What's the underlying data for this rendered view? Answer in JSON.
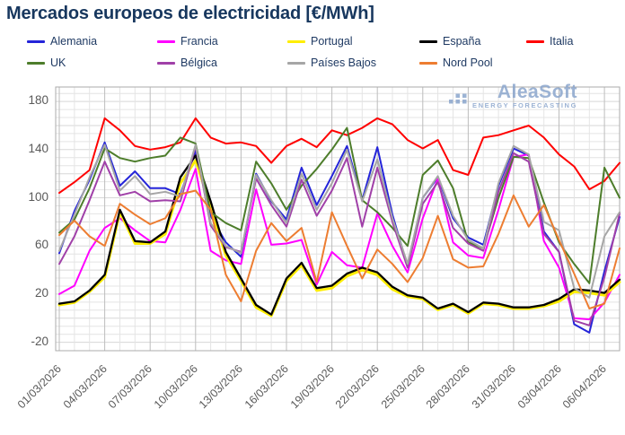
{
  "title": "Mercados europeos de electricidad [€/MWh]",
  "logo": {
    "name": "AleaSoft",
    "subtitle": "ENERGY FORECASTING"
  },
  "axis_text_color": "#595959",
  "title_color": "#17375e",
  "chart_data": {
    "type": "line",
    "title": "Mercados europeos de electricidad [€/MWh]",
    "ylabel": "",
    "xlabel": "",
    "ylim": [
      -20,
      180
    ],
    "y_ticks": [
      180,
      140,
      100,
      60,
      20,
      -20
    ],
    "grid": "on",
    "legend_position": "top",
    "x_tick_labels": [
      "01/03/2026",
      "04/03/2026",
      "07/03/2026",
      "10/03/2026",
      "13/03/2026",
      "16/03/2026",
      "19/03/2026",
      "22/03/2026",
      "25/03/2026",
      "28/03/2026",
      "31/03/2026",
      "03/04/2026",
      "06/04/2026"
    ],
    "categories": [
      "01/03/2026",
      "02/03/2026",
      "03/03/2026",
      "04/03/2026",
      "05/03/2026",
      "06/03/2026",
      "07/03/2026",
      "08/03/2026",
      "09/03/2026",
      "10/03/2026",
      "11/03/2026",
      "12/03/2026",
      "13/03/2026",
      "14/03/2026",
      "15/03/2026",
      "16/03/2026",
      "17/03/2026",
      "18/03/2026",
      "19/03/2026",
      "20/03/2026",
      "21/03/2026",
      "22/03/2026",
      "23/03/2026",
      "24/03/2026",
      "25/03/2026",
      "26/03/2026",
      "27/03/2026",
      "28/03/2026",
      "29/03/2026",
      "30/03/2026",
      "31/03/2026",
      "01/04/2026",
      "02/04/2026",
      "03/04/2026",
      "04/04/2026",
      "05/04/2026",
      "06/04/2026",
      "07/04/2026"
    ],
    "series": [
      {
        "name": "Alemania",
        "color": "#2424d9",
        "values": [
          54,
          89,
          115,
          146,
          110,
          122,
          108,
          108,
          103,
          139,
          85,
          63,
          51,
          120,
          97,
          82,
          125,
          94,
          118,
          143,
          98,
          142,
          86,
          43,
          100,
          117,
          83,
          67,
          61,
          110,
          141,
          135,
          72,
          55,
          -5,
          -12,
          39,
          84
        ]
      },
      {
        "name": "Francia",
        "color": "#ff00ff",
        "values": [
          20,
          27,
          56,
          75,
          83,
          73,
          64,
          63,
          90,
          124,
          56,
          48,
          45,
          107,
          61,
          62,
          65,
          28,
          55,
          44,
          42,
          87,
          60,
          38,
          83,
          116,
          63,
          52,
          50,
          90,
          134,
          136,
          64,
          42,
          0,
          -1,
          13,
          36
        ]
      },
      {
        "name": "Portugal",
        "color": "#ffee00",
        "values": [
          11,
          13,
          22,
          34,
          88,
          62,
          62,
          70,
          112,
          131,
          93,
          52,
          31,
          9,
          2,
          31,
          44,
          23,
          25,
          35,
          40,
          36,
          24,
          18,
          16,
          7,
          11,
          4,
          12,
          11,
          8,
          8,
          10,
          14,
          22,
          21,
          19,
          30
        ]
      },
      {
        "name": "España",
        "color": "#000000",
        "values": [
          12,
          14,
          23,
          36,
          90,
          64,
          63,
          72,
          117,
          135,
          97,
          55,
          33,
          11,
          3,
          33,
          46,
          25,
          27,
          37,
          42,
          38,
          26,
          19,
          17,
          8,
          12,
          5,
          13,
          12,
          9,
          9,
          11,
          16,
          24,
          23,
          21,
          32
        ]
      },
      {
        "name": "Italia",
        "color": "#ff0000",
        "values": [
          104,
          113,
          123,
          166,
          156,
          143,
          140,
          142,
          146,
          166,
          150,
          145,
          146,
          143,
          129,
          143,
          149,
          142,
          156,
          152,
          158,
          166,
          161,
          148,
          141,
          148,
          123,
          119,
          150,
          152,
          156,
          160,
          150,
          136,
          126,
          107,
          114,
          129
        ]
      },
      {
        "name": "UK",
        "color": "#4d7d2b",
        "values": [
          71,
          82,
          108,
          141,
          133,
          130,
          133,
          135,
          150,
          145,
          88,
          79,
          73,
          130,
          112,
          90,
          110,
          124,
          140,
          158,
          98,
          88,
          75,
          60,
          119,
          131,
          108,
          63,
          58,
          100,
          134,
          133,
          96,
          63,
          45,
          29,
          125,
          100
        ]
      },
      {
        "name": "Bélgica",
        "color": "#a040a8",
        "values": [
          45,
          68,
          98,
          130,
          102,
          105,
          97,
          98,
          97,
          143,
          77,
          59,
          55,
          116,
          94,
          76,
          115,
          85,
          106,
          133,
          76,
          125,
          80,
          42,
          95,
          113,
          75,
          62,
          56,
          105,
          137,
          130,
          70,
          55,
          -2,
          -6,
          34,
          87
        ]
      },
      {
        "name": "Países Bajos",
        "color": "#a6a6a6",
        "values": [
          56,
          86,
          117,
          144,
          106,
          118,
          103,
          105,
          101,
          144,
          79,
          60,
          54,
          119,
          98,
          79,
          120,
          90,
          112,
          140,
          97,
          132,
          83,
          45,
          100,
          118,
          85,
          65,
          58,
          112,
          143,
          136,
          80,
          73,
          25,
          17,
          68,
          88
        ]
      },
      {
        "name": "Nord Pool",
        "color": "#ed7d31",
        "values": [
          69,
          81,
          68,
          60,
          95,
          86,
          78,
          83,
          103,
          106,
          90,
          36,
          14,
          56,
          79,
          64,
          75,
          30,
          88,
          60,
          33,
          57,
          45,
          30,
          50,
          85,
          49,
          42,
          43,
          70,
          102,
          76,
          94,
          65,
          37,
          8,
          12,
          58
        ]
      }
    ]
  }
}
